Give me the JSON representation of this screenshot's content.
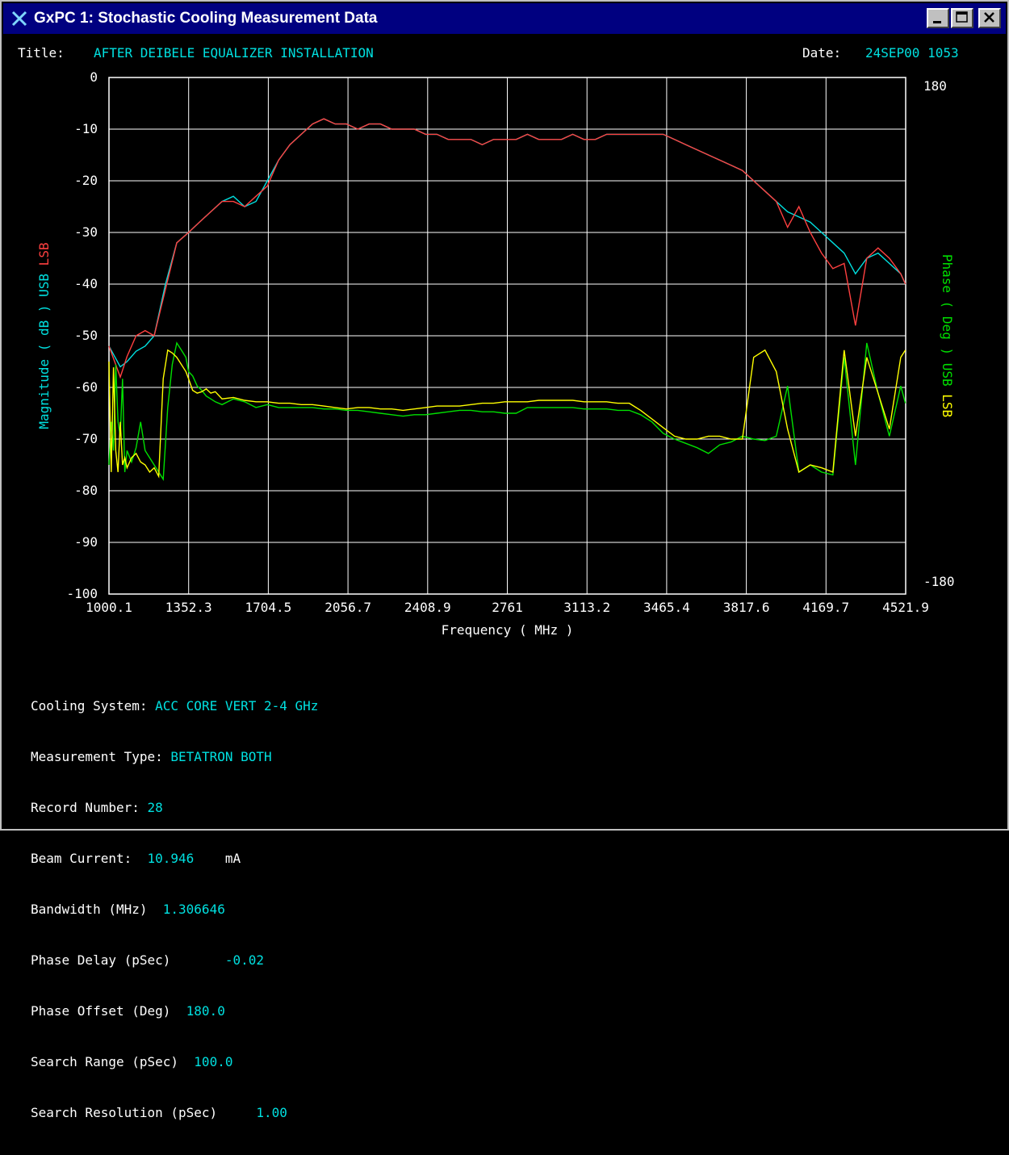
{
  "window": {
    "title": "GxPC 1: Stochastic Cooling Measurement Data",
    "icon": "x-logo-icon"
  },
  "header": {
    "title_label": "Title:",
    "title_value": "AFTER DEIBELE EQUALIZER INSTALLATION",
    "date_label": "Date:",
    "date_value": "24SEP00 1053"
  },
  "axes": {
    "left_label_magnitude": "Magnitude ( dB )",
    "left_label_usb": "USB",
    "left_label_lsb": "LSB",
    "right_label_phase": "Phase ( Deg )",
    "right_label_usb": "USB",
    "right_label_lsb": "LSB",
    "x_label": "Frequency ( MHz )",
    "right_top": "180",
    "right_bottom": "-180"
  },
  "colors": {
    "mag_usb": "#00e0e0",
    "mag_lsb": "#ff4040",
    "phase_usb": "#00e000",
    "phase_lsb": "#ffff00",
    "grid": "#ffffff",
    "text_value": "#00e0e0"
  },
  "chart_data": {
    "type": "line",
    "x_ticks": [
      "1000.1",
      "1352.3",
      "1704.5",
      "2056.7",
      "2408.9",
      "2761",
      "3113.2",
      "3465.4",
      "3817.6",
      "4169.7",
      "4521.9"
    ],
    "y_ticks": [
      "0",
      "-10",
      "-20",
      "-30",
      "-40",
      "-50",
      "-60",
      "-70",
      "-80",
      "-90",
      "-100"
    ],
    "xlim": [
      1000.1,
      4521.9
    ],
    "ylim": [
      -100,
      0
    ],
    "y2lim": [
      -180,
      180
    ],
    "grid": true,
    "series": [
      {
        "name": "USB",
        "axis": "magnitude",
        "color": "#00e0e0",
        "x": [
          1000,
          1050,
          1080,
          1120,
          1160,
          1200,
          1250,
          1300,
          1352,
          1400,
          1450,
          1500,
          1550,
          1600,
          1650,
          1700,
          1750,
          1800,
          1850,
          1900,
          1950,
          2000,
          2050,
          2100,
          2150,
          2200,
          2250,
          2300,
          2350,
          2400,
          2450,
          2500,
          2550,
          2600,
          2650,
          2700,
          2750,
          2800,
          2850,
          2900,
          2950,
          3000,
          3050,
          3100,
          3150,
          3200,
          3250,
          3300,
          3350,
          3400,
          3450,
          3500,
          3550,
          3600,
          3650,
          3700,
          3750,
          3800,
          3850,
          3900,
          3950,
          4000,
          4050,
          4100,
          4150,
          4200,
          4250,
          4300,
          4350,
          4400,
          4450,
          4500,
          4521
        ],
        "y": [
          -52,
          -56,
          -55,
          -53,
          -52,
          -50,
          -40,
          -32,
          -30,
          -28,
          -26,
          -24,
          -23,
          -25,
          -24,
          -20,
          -16,
          -13,
          -11,
          -9,
          -8,
          -9,
          -9,
          -10,
          -9,
          -9,
          -10,
          -10,
          -10,
          -11,
          -11,
          -12,
          -12,
          -12,
          -13,
          -12,
          -12,
          -12,
          -11,
          -12,
          -12,
          -12,
          -11,
          -12,
          -12,
          -11,
          -11,
          -11,
          -11,
          -11,
          -11,
          -12,
          -13,
          -14,
          -15,
          -16,
          -17,
          -18,
          -20,
          -22,
          -24,
          -26,
          -27,
          -28,
          -30,
          -32,
          -34,
          -38,
          -35,
          -34,
          -36,
          -38,
          -40
        ]
      },
      {
        "name": "LSB",
        "axis": "magnitude",
        "color": "#ff4040",
        "x": [
          1000,
          1050,
          1080,
          1120,
          1160,
          1200,
          1250,
          1300,
          1352,
          1400,
          1450,
          1500,
          1550,
          1600,
          1650,
          1700,
          1750,
          1800,
          1850,
          1900,
          1950,
          2000,
          2050,
          2100,
          2150,
          2200,
          2250,
          2300,
          2350,
          2400,
          2450,
          2500,
          2550,
          2600,
          2650,
          2700,
          2750,
          2800,
          2850,
          2900,
          2950,
          3000,
          3050,
          3100,
          3150,
          3200,
          3250,
          3300,
          3350,
          3400,
          3450,
          3500,
          3550,
          3600,
          3650,
          3700,
          3750,
          3800,
          3850,
          3900,
          3950,
          4000,
          4050,
          4100,
          4150,
          4200,
          4250,
          4300,
          4350,
          4400,
          4450,
          4500,
          4521
        ],
        "y": [
          -52,
          -58,
          -54,
          -50,
          -49,
          -50,
          -41,
          -32,
          -30,
          -28,
          -26,
          -24,
          -24,
          -25,
          -23,
          -21,
          -16,
          -13,
          -11,
          -9,
          -8,
          -9,
          -9,
          -10,
          -9,
          -9,
          -10,
          -10,
          -10,
          -11,
          -11,
          -12,
          -12,
          -12,
          -13,
          -12,
          -12,
          -12,
          -11,
          -12,
          -12,
          -12,
          -11,
          -12,
          -12,
          -11,
          -11,
          -11,
          -11,
          -11,
          -11,
          -12,
          -13,
          -14,
          -15,
          -16,
          -17,
          -18,
          -20,
          -22,
          -24,
          -29,
          -25,
          -30,
          -34,
          -37,
          -36,
          -48,
          -35,
          -33,
          -35,
          -38,
          -40
        ]
      },
      {
        "name": "USB",
        "axis": "phase",
        "color": "#00e000",
        "x": [
          1000,
          1010,
          1020,
          1030,
          1040,
          1050,
          1060,
          1070,
          1080,
          1100,
          1120,
          1140,
          1160,
          1180,
          1200,
          1220,
          1240,
          1260,
          1280,
          1300,
          1320,
          1340,
          1352,
          1370,
          1390,
          1410,
          1430,
          1450,
          1470,
          1500,
          1550,
          1600,
          1650,
          1700,
          1750,
          1800,
          1850,
          1900,
          1950,
          2000,
          2050,
          2100,
          2150,
          2200,
          2250,
          2300,
          2350,
          2400,
          2450,
          2500,
          2550,
          2600,
          2650,
          2700,
          2750,
          2800,
          2850,
          2900,
          2950,
          3000,
          3050,
          3100,
          3150,
          3200,
          3250,
          3300,
          3350,
          3400,
          3450,
          3500,
          3550,
          3600,
          3650,
          3700,
          3750,
          3800,
          3850,
          3900,
          3950,
          4000,
          4050,
          4100,
          4150,
          4200,
          4250,
          4300,
          4350,
          4400,
          4450,
          4500,
          4521
        ],
        "y": [
          -90,
          -60,
          -80,
          -20,
          -60,
          -70,
          -30,
          -95,
          -80,
          -88,
          -78,
          -60,
          -80,
          -85,
          -90,
          -95,
          -100,
          -50,
          -20,
          -5,
          -10,
          -15,
          -25,
          -28,
          -35,
          -38,
          -42,
          -44,
          -46,
          -48,
          -44,
          -46,
          -50,
          -48,
          -50,
          -50,
          -50,
          -50,
          -51,
          -51,
          -52,
          -52,
          -53,
          -54,
          -55,
          -56,
          -55,
          -55,
          -54,
          -53,
          -52,
          -52,
          -53,
          -53,
          -54,
          -54,
          -50,
          -50,
          -50,
          -50,
          -50,
          -51,
          -51,
          -51,
          -52,
          -52,
          -55,
          -60,
          -68,
          -72,
          -75,
          -78,
          -82,
          -76,
          -74,
          -70,
          -72,
          -73,
          -70,
          -35,
          -95,
          -90,
          -95,
          -97,
          -15,
          -90,
          -5,
          -40,
          -70,
          -35,
          -47
        ]
      },
      {
        "name": "LSB",
        "axis": "phase",
        "color": "#ffff00",
        "x": [
          1000,
          1010,
          1020,
          1030,
          1040,
          1050,
          1060,
          1070,
          1080,
          1100,
          1120,
          1140,
          1160,
          1180,
          1200,
          1220,
          1240,
          1260,
          1280,
          1300,
          1320,
          1340,
          1352,
          1370,
          1390,
          1410,
          1430,
          1450,
          1470,
          1500,
          1550,
          1600,
          1650,
          1700,
          1750,
          1800,
          1850,
          1900,
          1950,
          2000,
          2050,
          2100,
          2150,
          2200,
          2250,
          2300,
          2350,
          2400,
          2450,
          2500,
          2550,
          2600,
          2650,
          2700,
          2750,
          2800,
          2850,
          2900,
          2950,
          3000,
          3050,
          3100,
          3150,
          3200,
          3250,
          3300,
          3350,
          3400,
          3450,
          3500,
          3550,
          3600,
          3650,
          3700,
          3750,
          3800,
          3850,
          3900,
          3950,
          4000,
          4050,
          4100,
          4150,
          4200,
          4250,
          4300,
          4350,
          4400,
          4450,
          4500,
          4521
        ],
        "y": [
          -18,
          -95,
          -22,
          -80,
          -95,
          -60,
          -90,
          -85,
          -92,
          -85,
          -82,
          -88,
          -90,
          -95,
          -92,
          -98,
          -30,
          -10,
          -12,
          -15,
          -20,
          -25,
          -30,
          -38,
          -40,
          -39,
          -37,
          -40,
          -39,
          -44,
          -43,
          -45,
          -46,
          -46,
          -47,
          -47,
          -48,
          -48,
          -49,
          -50,
          -51,
          -50,
          -50,
          -51,
          -51,
          -52,
          -51,
          -50,
          -49,
          -49,
          -49,
          -48,
          -47,
          -47,
          -46,
          -46,
          -46,
          -45,
          -45,
          -45,
          -45,
          -46,
          -46,
          -46,
          -47,
          -47,
          -52,
          -58,
          -64,
          -70,
          -72,
          -72,
          -70,
          -70,
          -72,
          -72,
          -15,
          -10,
          -25,
          -65,
          -95,
          -90,
          -92,
          -95,
          -10,
          -70,
          -15,
          -40,
          -65,
          -15,
          -10
        ]
      }
    ]
  },
  "info": {
    "cooling_system_label": "Cooling System:",
    "cooling_system_value": "ACC CORE VERT 2-4 GHz",
    "measurement_type_label": "Measurement Type:",
    "measurement_type_value": "BETATRON BOTH",
    "record_number_label": "Record Number:",
    "record_number_value": "28",
    "beam_current_label": "Beam Current:",
    "beam_current_value": "10.946",
    "beam_current_unit": "mA",
    "bandwidth_label": "Bandwidth (MHz)",
    "bandwidth_value": "1.306646",
    "phase_delay_label": "Phase Delay (pSec)",
    "phase_delay_value": "-0.02",
    "phase_offset_label": "Phase Offset (Deg)",
    "phase_offset_value": "180.0",
    "search_range_label": "Search Range (pSec)",
    "search_range_value": "100.0",
    "search_resolution_label": "Search Resolution (pSec)",
    "search_resolution_value": "1.00"
  }
}
